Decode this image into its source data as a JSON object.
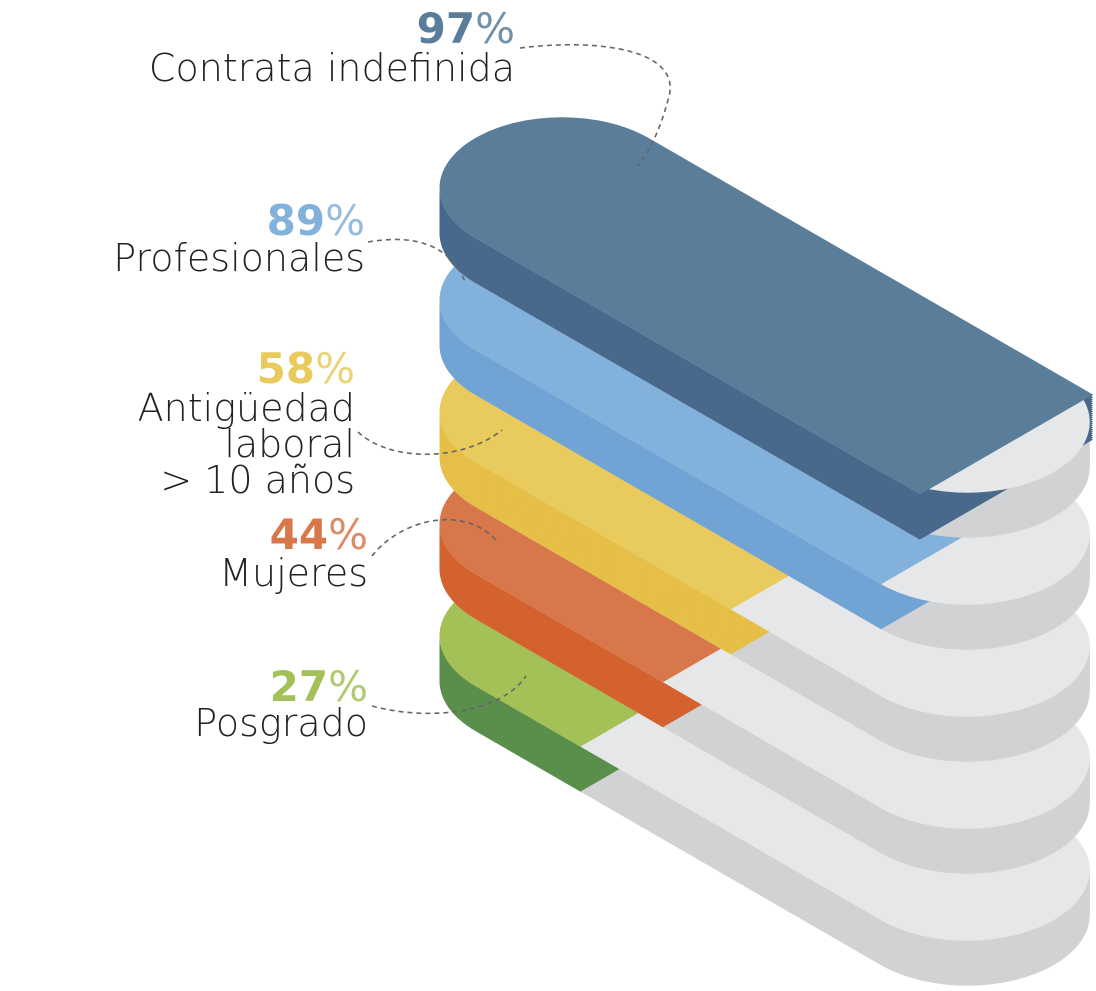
{
  "chart_data": {
    "type": "isometric-bar",
    "categories": [
      "Contrata indefinida",
      "Profesionales",
      "Antigüedad laboral\n> 10 años",
      "Mujeres",
      "Posgrado"
    ],
    "values": [
      97,
      89,
      58,
      44,
      27
    ],
    "value_labels": [
      "97%",
      "89%",
      "58%",
      "44%",
      "27%"
    ],
    "colors": [
      "#5a7d9a",
      "#82b1dc",
      "#e8cb5c",
      "#d7774a",
      "#a3c157"
    ],
    "side_colors": [
      "#48688c",
      "#72a3d5",
      "#e6bf48",
      "#d4622f",
      "#5a8e4b"
    ],
    "ylim": [
      0,
      100
    ]
  }
}
